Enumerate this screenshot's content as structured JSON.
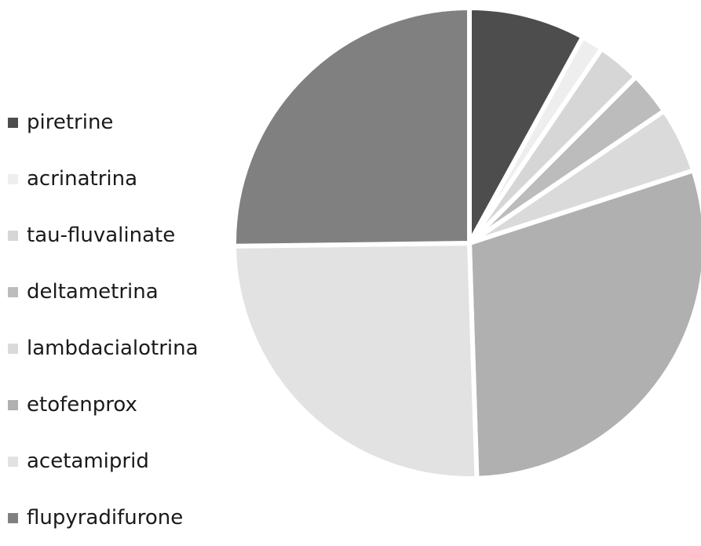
{
  "chart_data": {
    "type": "pie",
    "title": "",
    "start_angle_deg": 0,
    "direction": "clockwise",
    "slices": [
      {
        "label": "piretrine",
        "value": 8.0,
        "color": "#4d4d4d"
      },
      {
        "label": "acrinatrina",
        "value": 1.5,
        "color": "#eeeeee"
      },
      {
        "label": "tau-fluvalinate",
        "value": 3.0,
        "color": "#d6d6d6"
      },
      {
        "label": "deltametrina",
        "value": 3.0,
        "color": "#bcbcbc"
      },
      {
        "label": "lambdacialotrina",
        "value": 4.5,
        "color": "#dadada"
      },
      {
        "label": "etofenprox",
        "value": 29.5,
        "color": "#b0b0b0"
      },
      {
        "label": "acetamiprid",
        "value": 25.3,
        "color": "#e2e2e2"
      },
      {
        "label": "flupyradifurone",
        "value": 25.2,
        "color": "#808080"
      }
    ],
    "legend_position": "left"
  }
}
